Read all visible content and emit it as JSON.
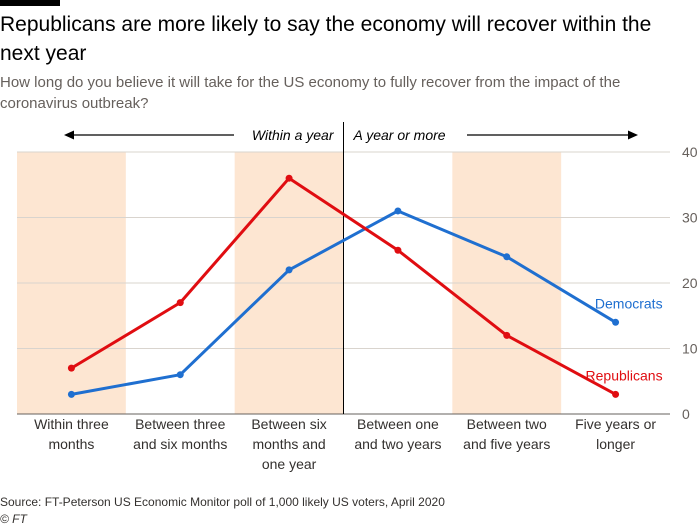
{
  "title": "Republicans are more likely to say the economy will recover within the next year",
  "subtitle": "How long do you believe it will take for the US economy to fully recover from the impact of the coronavirus outbreak?",
  "source": "Source: FT-Peterson US Economic Monitor poll of 1,000 likely US voters, April 2020",
  "credit": "© FT",
  "colors": {
    "democrats": "#1f6fd0",
    "republicans": "#e00d11",
    "band": "#fde6d2",
    "grid": "#d9d4ce",
    "axis": "#66605c"
  },
  "chart_data": {
    "type": "line",
    "categories": [
      [
        "Within three",
        "months"
      ],
      [
        "Between three",
        "and six months"
      ],
      [
        "Between six",
        "months and",
        "one year"
      ],
      [
        "Between one",
        "and two years"
      ],
      [
        "Between two",
        "and five years"
      ],
      [
        "Five years or",
        "longer"
      ]
    ],
    "series": [
      {
        "name": "Democrats",
        "key": "democrats",
        "values": [
          3,
          6,
          22,
          31,
          24,
          14
        ]
      },
      {
        "name": "Republicans",
        "key": "republicans",
        "values": [
          7,
          17,
          36,
          25,
          12,
          3
        ]
      }
    ],
    "ylim": [
      0,
      40
    ],
    "yticks": [
      0,
      10,
      20,
      30,
      40
    ],
    "shaded_categories": [
      0,
      2,
      4
    ],
    "annotations": {
      "left": "Within a year",
      "right": "A year or more"
    },
    "grid": true
  }
}
